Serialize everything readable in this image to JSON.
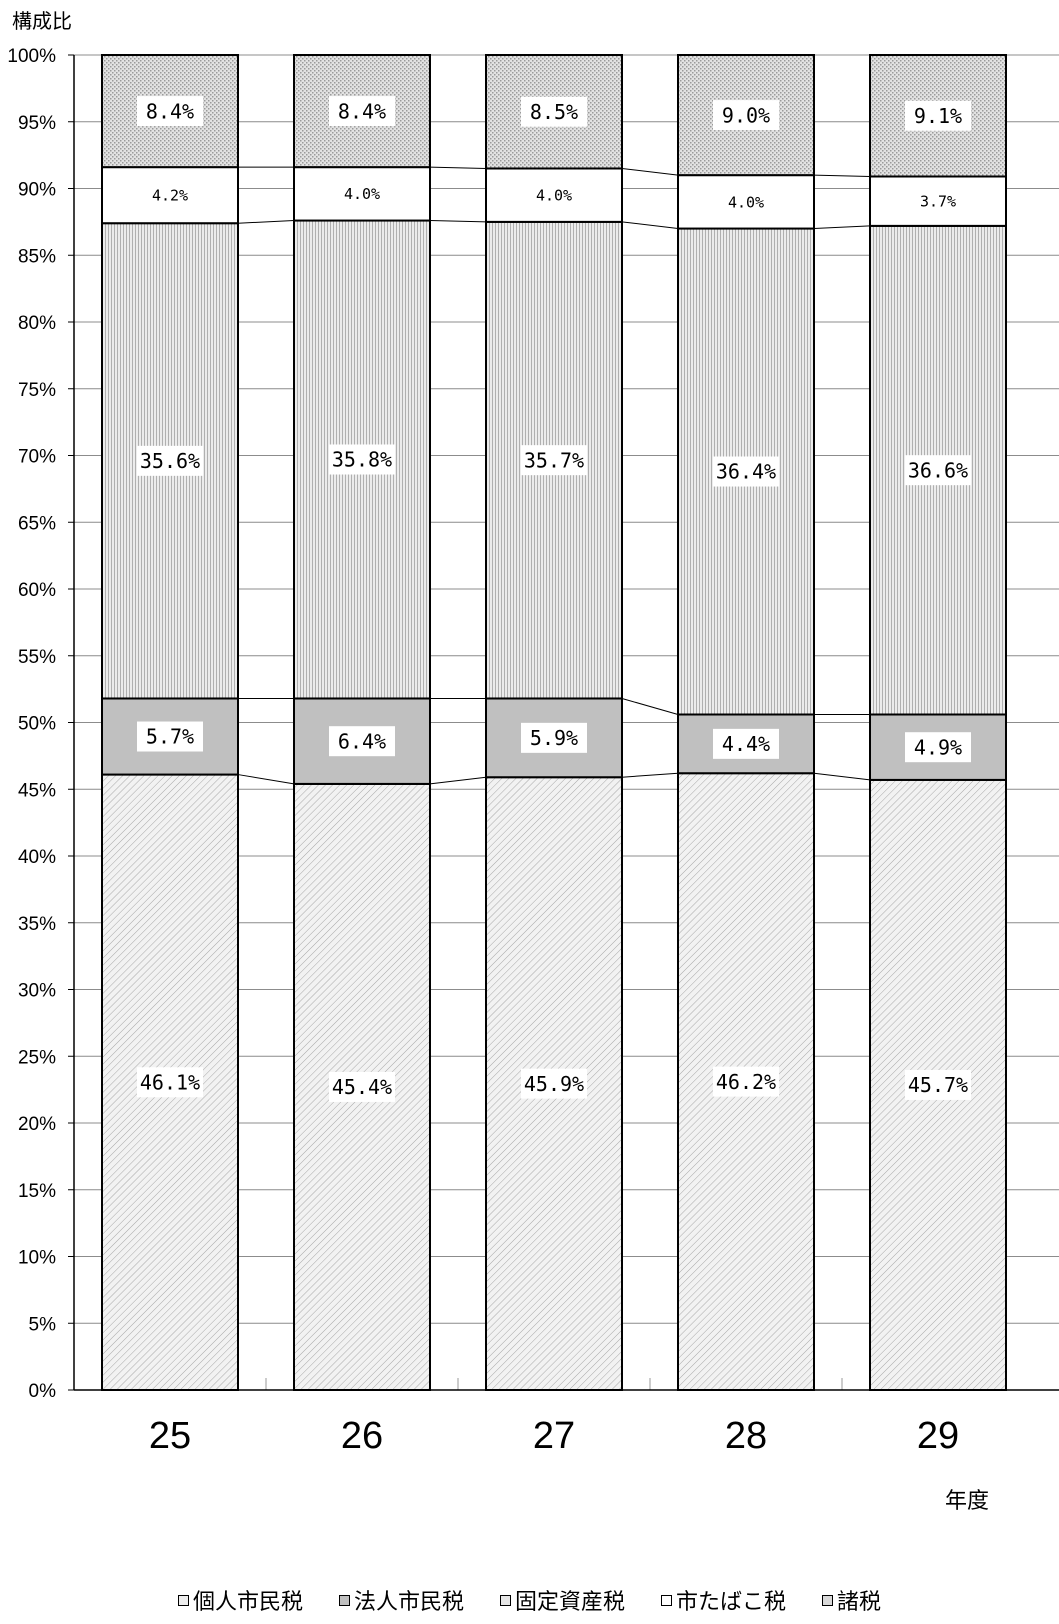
{
  "chart_data": {
    "type": "bar",
    "stacked": true,
    "y_axis_title": "構成比",
    "x_axis_title": "年度",
    "ylim": [
      0,
      100
    ],
    "y_ticks": [
      "0%",
      "5%",
      "10%",
      "15%",
      "20%",
      "25%",
      "30%",
      "35%",
      "40%",
      "45%",
      "50%",
      "55%",
      "60%",
      "65%",
      "70%",
      "75%",
      "80%",
      "85%",
      "90%",
      "95%",
      "100%"
    ],
    "categories": [
      "25",
      "26",
      "27",
      "28",
      "29"
    ],
    "series": [
      {
        "name": "個人市民税",
        "values": [
          46.1,
          45.4,
          45.9,
          46.2,
          45.7
        ],
        "labels": [
          "46.1%",
          "45.4%",
          "45.9%",
          "46.2%",
          "45.7%"
        ],
        "fill": "#eeeeee",
        "pattern": "diag"
      },
      {
        "name": "法人市民税",
        "values": [
          5.7,
          6.4,
          5.9,
          4.4,
          4.9
        ],
        "labels": [
          "5.7%",
          "6.4%",
          "5.9%",
          "4.4%",
          "4.9%"
        ],
        "fill": "#c0c0c0",
        "pattern": "solid"
      },
      {
        "name": "固定資産税",
        "values": [
          35.6,
          35.8,
          35.7,
          36.4,
          36.6
        ],
        "labels": [
          "35.6%",
          "35.8%",
          "35.7%",
          "36.4%",
          "36.6%"
        ],
        "fill": "#e6e6e6",
        "pattern": "vert"
      },
      {
        "name": "市たばこ税",
        "values": [
          4.2,
          4.0,
          4.0,
          4.0,
          3.7
        ],
        "labels": [
          "4.2%",
          "4.0%",
          "4.0%",
          "4.0%",
          "3.7%"
        ],
        "fill": "#ffffff",
        "pattern": "none"
      },
      {
        "name": "諸税",
        "values": [
          8.4,
          8.4,
          8.5,
          9.0,
          9.1
        ],
        "labels": [
          "8.4%",
          "8.4%",
          "8.5%",
          "9.0%",
          "9.1%"
        ],
        "fill": "#d9d9d9",
        "pattern": "dots"
      }
    ],
    "grid": true,
    "legend_position": "bottom"
  }
}
